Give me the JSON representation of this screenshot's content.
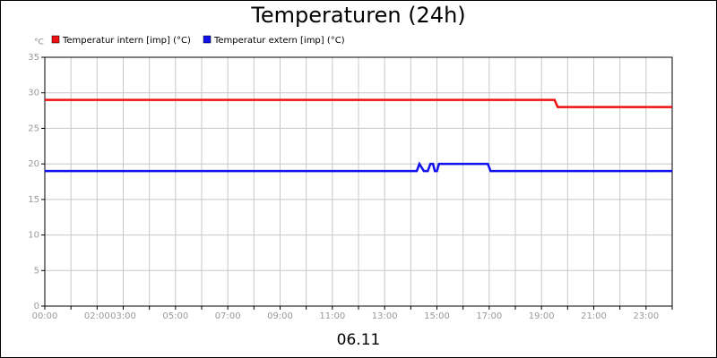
{
  "chart_data": {
    "type": "line",
    "title": "Temperaturen (24h)",
    "y_unit": "°C",
    "x_label": "06.11",
    "xlim": [
      0,
      24
    ],
    "xticks": [
      {
        "value": 0,
        "label": "00:00"
      },
      {
        "value": 1,
        "label": null
      },
      {
        "value": 2,
        "label": "02:00"
      },
      {
        "value": 3,
        "label": "03:00"
      },
      {
        "value": 4,
        "label": null
      },
      {
        "value": 5,
        "label": "05:00"
      },
      {
        "value": 6,
        "label": null
      },
      {
        "value": 7,
        "label": "07:00"
      },
      {
        "value": 8,
        "label": null
      },
      {
        "value": 9,
        "label": "09:00"
      },
      {
        "value": 10,
        "label": null
      },
      {
        "value": 11,
        "label": "11:00"
      },
      {
        "value": 12,
        "label": null
      },
      {
        "value": 13,
        "label": "13:00"
      },
      {
        "value": 14,
        "label": null
      },
      {
        "value": 15,
        "label": "15:00"
      },
      {
        "value": 16,
        "label": null
      },
      {
        "value": 17,
        "label": "17:00"
      },
      {
        "value": 18,
        "label": null
      },
      {
        "value": 19,
        "label": "19:00"
      },
      {
        "value": 20,
        "label": null
      },
      {
        "value": 21,
        "label": "21:00"
      },
      {
        "value": 22,
        "label": null
      },
      {
        "value": 23,
        "label": "23:00"
      },
      {
        "value": 24,
        "label": null
      }
    ],
    "ylim": [
      0,
      35
    ],
    "yticks": [
      0,
      5,
      10,
      15,
      20,
      25,
      30,
      35
    ],
    "grid": true,
    "series": [
      {
        "name": "Temperatur intern [imp] (°C)",
        "color": "#ee1111",
        "x": [
          0,
          19.5,
          19.62,
          24
        ],
        "values": [
          29,
          29,
          28,
          28
        ]
      },
      {
        "name": "Temperatur extern [imp] (°C)",
        "color": "#1111ee",
        "x": [
          0,
          14.23,
          14.33,
          14.5,
          14.65,
          14.75,
          14.85,
          14.92,
          15.0,
          15.08,
          15.2,
          15.3,
          16.95,
          17.05,
          24
        ],
        "values": [
          19,
          19,
          20,
          19,
          19,
          20,
          20,
          19,
          19,
          20,
          20,
          20,
          20,
          19,
          19
        ]
      }
    ]
  }
}
